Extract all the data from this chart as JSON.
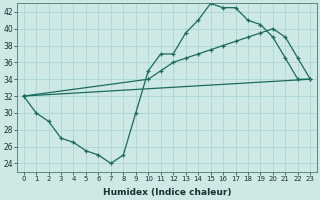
{
  "xlabel": "Humidex (Indice chaleur)",
  "background_color": "#cde8e5",
  "plot_bg_color": "#cde8e5",
  "grid_color": "#b0d8d4",
  "line_color": "#1a6b5e",
  "xlim": [
    -0.5,
    23.5
  ],
  "ylim": [
    23,
    43
  ],
  "xticks": [
    0,
    1,
    2,
    3,
    4,
    5,
    6,
    7,
    8,
    9,
    10,
    11,
    12,
    13,
    14,
    15,
    16,
    17,
    18,
    19,
    20,
    21,
    22,
    23
  ],
  "yticks": [
    24,
    26,
    28,
    30,
    32,
    34,
    36,
    38,
    40,
    42
  ],
  "line1_x": [
    0,
    1,
    2,
    3,
    4,
    5,
    6,
    7,
    8,
    9,
    10,
    11,
    12,
    13,
    14,
    15,
    16,
    17,
    18,
    19,
    20,
    21,
    22,
    23
  ],
  "line1_y": [
    32,
    30,
    29,
    27,
    26.5,
    25.5,
    25,
    24,
    25,
    30,
    35,
    37,
    37,
    39.5,
    41,
    43,
    42.5,
    42.5,
    41,
    40.5,
    39,
    36.5,
    34,
    34
  ],
  "line2_x": [
    0,
    10,
    11,
    12,
    13,
    14,
    15,
    16,
    17,
    18,
    19,
    20,
    21,
    22,
    23
  ],
  "line2_y": [
    32,
    34,
    35,
    36,
    36.5,
    37,
    37.5,
    38,
    38.5,
    39,
    39.5,
    40,
    39,
    36.5,
    34
  ],
  "line3_x": [
    0,
    23
  ],
  "line3_y": [
    32,
    34
  ]
}
